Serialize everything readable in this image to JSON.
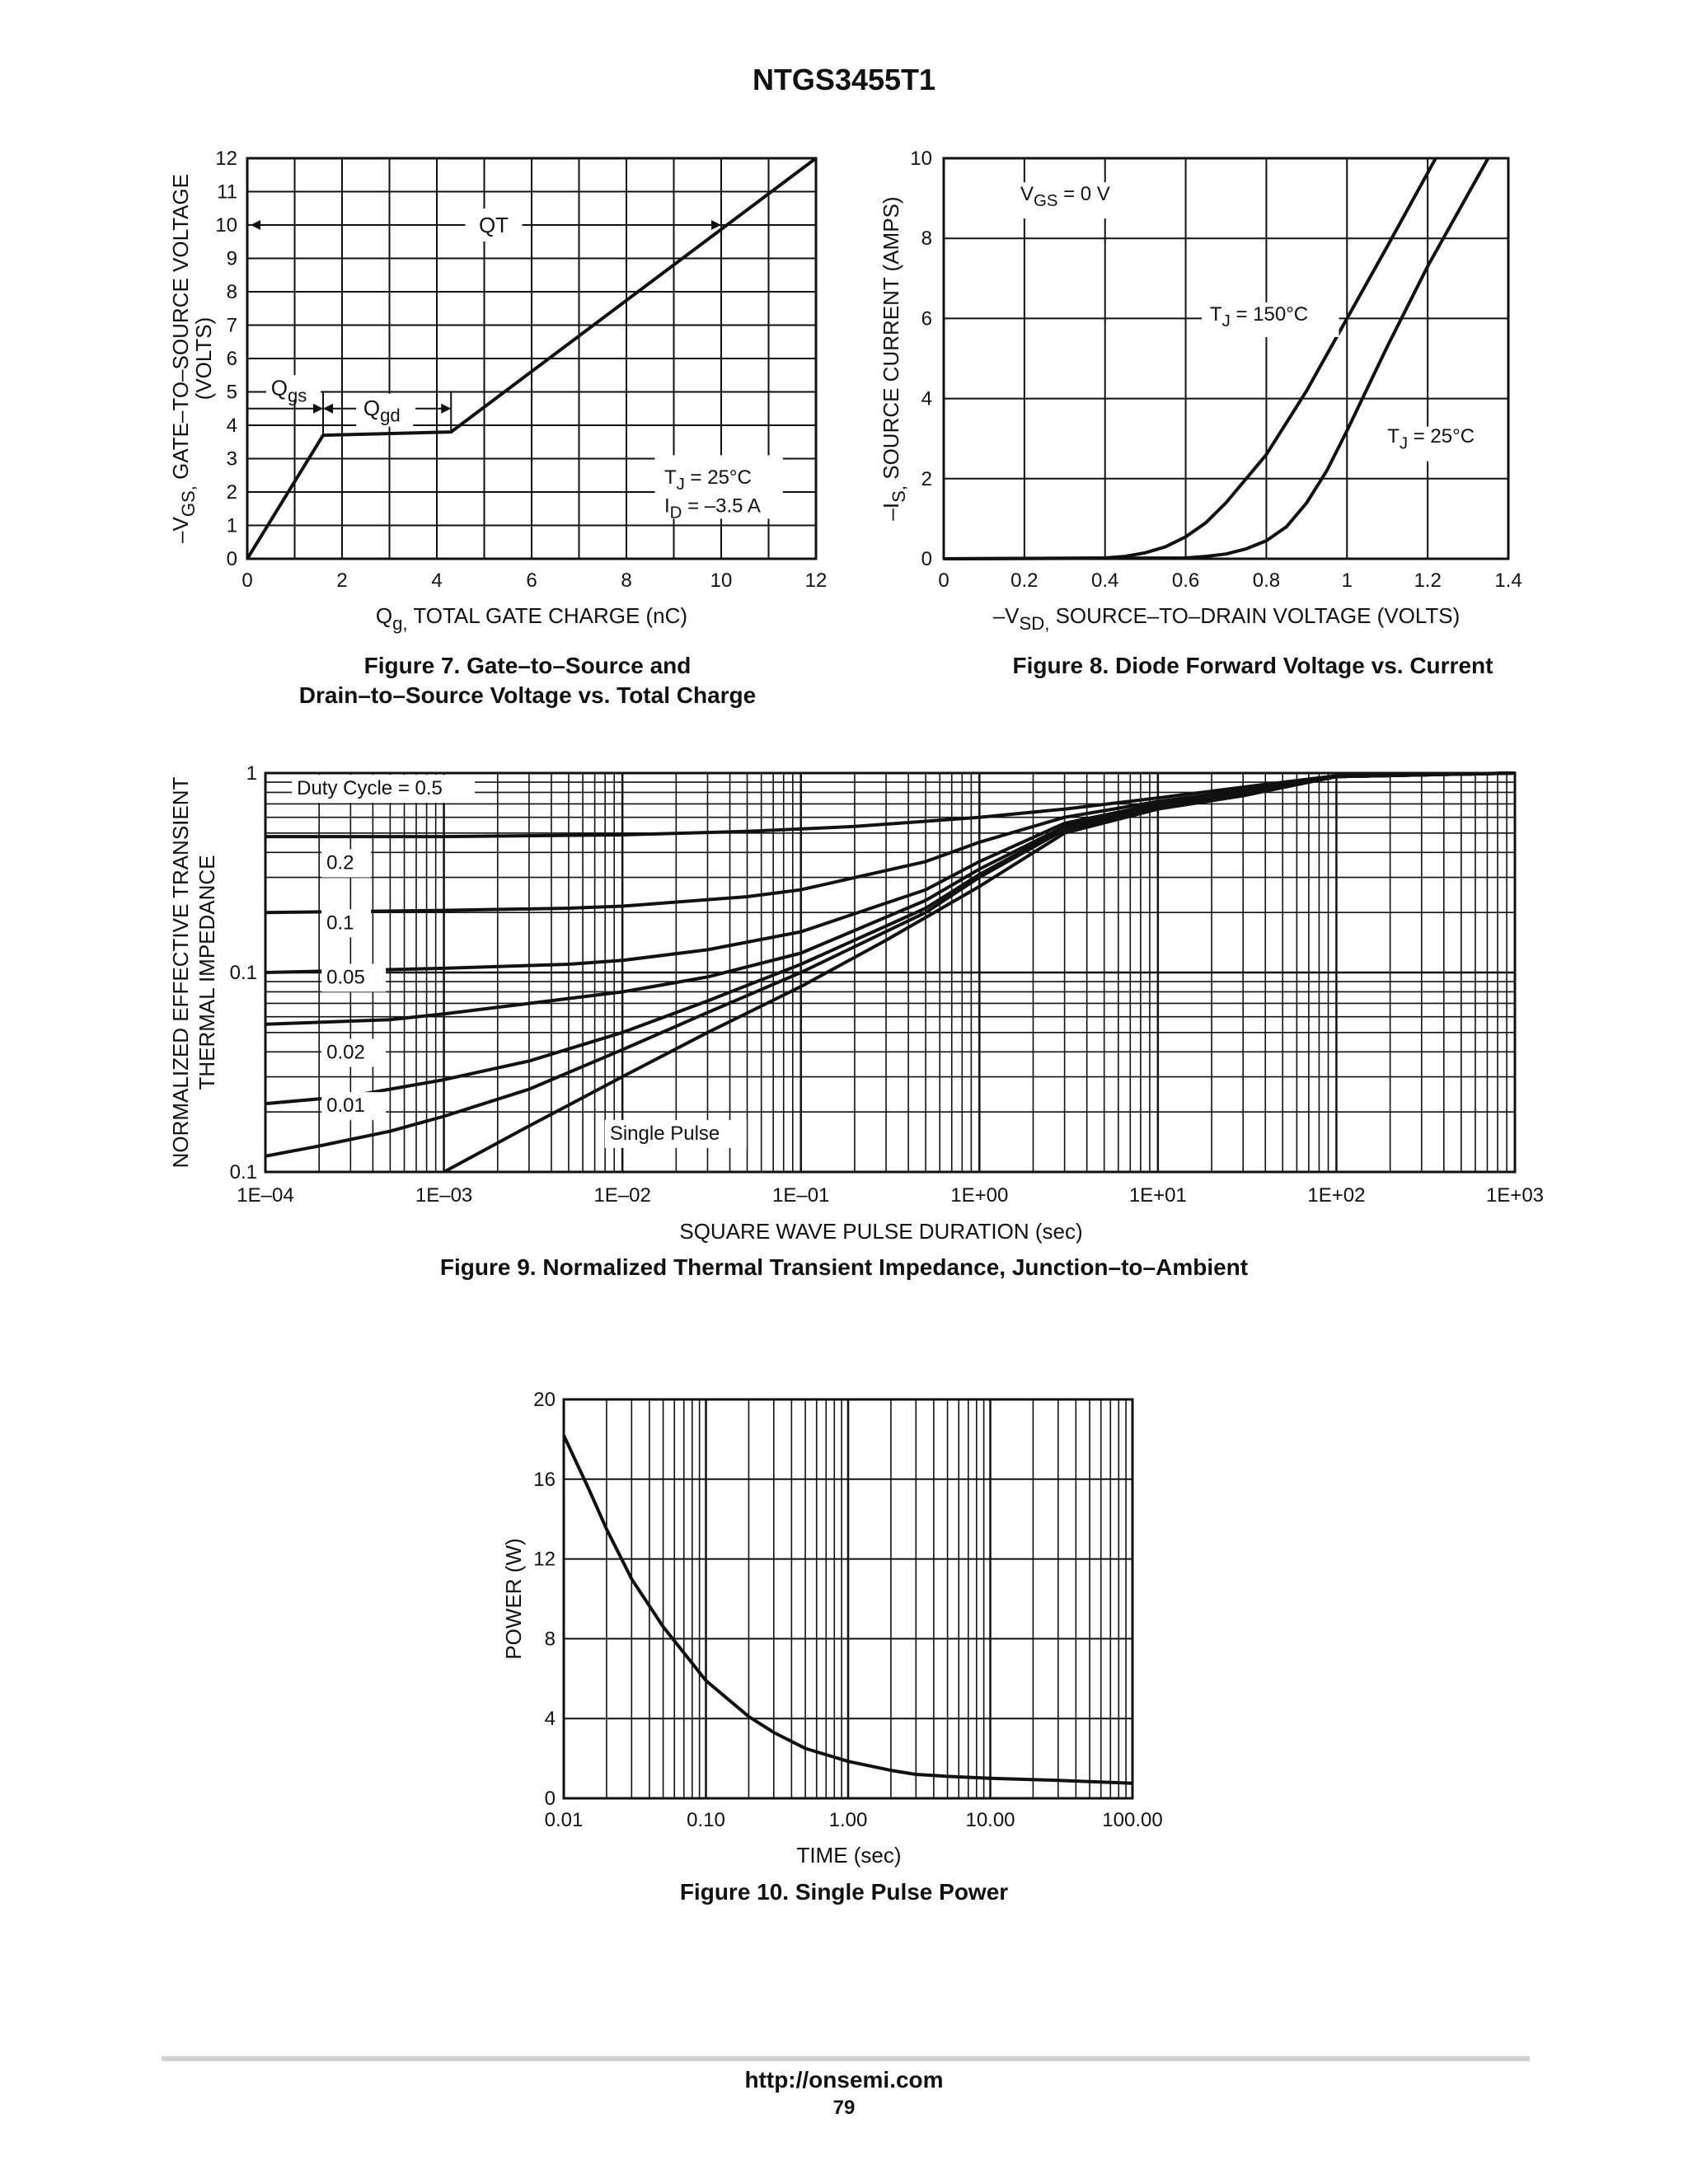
{
  "page": {
    "title": "NTGS3455T1",
    "footer_url": "http://onsemi.com",
    "footer_page": "79"
  },
  "chart_data": [
    {
      "id": "fig7",
      "type": "line",
      "caption_line1": "Figure 7. Gate–to–Source and",
      "caption_line2": "Drain–to–Source Voltage vs. Total Charge",
      "ylabel_line1": "–VGS, GATE–TO–SOURCE VOLTAGE",
      "ylabel_line2": "(VOLTS)",
      "xlabel": "Qg, TOTAL GATE CHARGE (nC)",
      "xlim": [
        0,
        12
      ],
      "ylim": [
        0,
        12
      ],
      "xticks": [
        "0",
        "2",
        "4",
        "6",
        "8",
        "10",
        "12"
      ],
      "yticks": [
        "0",
        "1",
        "2",
        "3",
        "4",
        "5",
        "6",
        "7",
        "8",
        "9",
        "10",
        "11",
        "12"
      ],
      "series": [
        {
          "name": "VGS",
          "x": [
            0,
            1.6,
            4.3,
            12
          ],
          "y": [
            0,
            3.7,
            3.8,
            12
          ]
        }
      ],
      "annotations": {
        "qt": "QT",
        "qgs": "Qgs",
        "qgd": "Qgd",
        "tj": "TJ = 25°C",
        "id": "ID = –3.5 A"
      }
    },
    {
      "id": "fig8",
      "type": "line",
      "caption": "Figure 8. Diode Forward Voltage vs. Current",
      "ylabel": "–IS, SOURCE CURRENT (AMPS)",
      "xlabel": "–VSD, SOURCE–TO–DRAIN VOLTAGE (VOLTS)",
      "xlim": [
        0,
        1.4
      ],
      "ylim": [
        0,
        10
      ],
      "xticks": [
        "0",
        "0.2",
        "0.4",
        "0.6",
        "0.8",
        "1",
        "1.2",
        "1.4"
      ],
      "yticks": [
        "0",
        "2",
        "4",
        "6",
        "8",
        "10"
      ],
      "condition": "VGS = 0 V",
      "series": [
        {
          "name": "TJ = 150°C",
          "x": [
            0,
            0.4,
            0.45,
            0.5,
            0.55,
            0.6,
            0.65,
            0.7,
            0.8,
            0.9,
            1.0,
            1.1,
            1.22
          ],
          "y": [
            0,
            0.02,
            0.06,
            0.15,
            0.3,
            0.55,
            0.9,
            1.4,
            2.6,
            4.2,
            6.0,
            7.8,
            10
          ]
        },
        {
          "name": "TJ = 25°C",
          "x": [
            0,
            0.6,
            0.65,
            0.7,
            0.75,
            0.8,
            0.85,
            0.9,
            0.95,
            1.0,
            1.1,
            1.2,
            1.35
          ],
          "y": [
            0,
            0.02,
            0.06,
            0.12,
            0.25,
            0.45,
            0.8,
            1.4,
            2.2,
            3.2,
            5.3,
            7.3,
            10
          ]
        }
      ],
      "series_labels": [
        "TJ = 150°C",
        "TJ = 25°C"
      ]
    },
    {
      "id": "fig9",
      "type": "line",
      "caption": "Figure 9. Normalized Thermal Transient Impedance, Junction–to–Ambient",
      "ylabel_line1": "NORMALIZED EFFECTIVE TRANSIENT",
      "ylabel_line2": "THERMAL IMPEDANCE",
      "xlabel": "SQUARE WAVE PULSE DURATION (sec)",
      "xscale": "log",
      "xlim": [
        0.0001,
        1000
      ],
      "ylim": [
        0.01,
        1
      ],
      "xticks": [
        "1E–04",
        "1E–03",
        "1E–02",
        "1E–01",
        "1E+00",
        "1E+01",
        "1E+02",
        "1E+03"
      ],
      "yticks": [
        "0.1",
        "0.1",
        "1"
      ],
      "series": [
        {
          "name": "Duty Cycle = 0.5",
          "x": [
            0.0001,
            0.001,
            0.01,
            0.05,
            0.2,
            1,
            3,
            10,
            30,
            100,
            1000
          ],
          "y": [
            0.48,
            0.48,
            0.49,
            0.51,
            0.54,
            0.6,
            0.66,
            0.75,
            0.85,
            0.97,
            1.0
          ]
        },
        {
          "name": "0.2",
          "x": [
            0.0001,
            0.001,
            0.005,
            0.01,
            0.05,
            0.1,
            0.5,
            1,
            3,
            10,
            30,
            100,
            1000
          ],
          "y": [
            0.2,
            0.205,
            0.21,
            0.215,
            0.24,
            0.26,
            0.36,
            0.45,
            0.6,
            0.72,
            0.82,
            0.96,
            1.0
          ]
        },
        {
          "name": "0.1",
          "x": [
            0.0001,
            0.001,
            0.005,
            0.01,
            0.03,
            0.1,
            0.5,
            1,
            3,
            10,
            30,
            100,
            1000
          ],
          "y": [
            0.1,
            0.105,
            0.11,
            0.115,
            0.13,
            0.16,
            0.26,
            0.36,
            0.56,
            0.7,
            0.8,
            0.96,
            1.0
          ]
        },
        {
          "name": "0.05",
          "x": [
            0.0001,
            0.0005,
            0.001,
            0.003,
            0.01,
            0.03,
            0.1,
            0.5,
            1,
            3,
            10,
            30,
            100,
            1000
          ],
          "y": [
            0.055,
            0.058,
            0.062,
            0.07,
            0.08,
            0.095,
            0.125,
            0.23,
            0.33,
            0.54,
            0.69,
            0.8,
            0.96,
            1.0
          ]
        },
        {
          "name": "0.02",
          "x": [
            0.0001,
            0.0003,
            0.001,
            0.003,
            0.01,
            0.03,
            0.1,
            0.5,
            1,
            3,
            10,
            30,
            100,
            1000
          ],
          "y": [
            0.022,
            0.024,
            0.029,
            0.036,
            0.05,
            0.072,
            0.11,
            0.21,
            0.31,
            0.53,
            0.68,
            0.79,
            0.96,
            1.0
          ]
        },
        {
          "name": "0.01",
          "x": [
            0.0001,
            0.0002,
            0.0005,
            0.001,
            0.003,
            0.01,
            0.03,
            0.1,
            0.5,
            1,
            3,
            10,
            30,
            100,
            1000
          ],
          "y": [
            0.012,
            0.0135,
            0.016,
            0.019,
            0.026,
            0.041,
            0.063,
            0.1,
            0.2,
            0.3,
            0.52,
            0.67,
            0.78,
            0.96,
            1.0
          ]
        },
        {
          "name": "Single Pulse",
          "x": [
            0.001,
            0.003,
            0.01,
            0.03,
            0.1,
            0.3,
            1,
            3,
            10,
            30,
            100,
            1000
          ],
          "y": [
            0.01,
            0.017,
            0.03,
            0.05,
            0.085,
            0.145,
            0.27,
            0.5,
            0.66,
            0.77,
            0.96,
            1.0
          ]
        }
      ],
      "series_labels": [
        "Duty Cycle = 0.5",
        "0.2",
        "0.1",
        "0.05",
        "0.02",
        "0.01",
        "Single Pulse"
      ]
    },
    {
      "id": "fig10",
      "type": "line",
      "caption": "Figure 10. Single Pulse Power",
      "ylabel": "POWER (W)",
      "xlabel": "TIME (sec)",
      "xscale": "log",
      "xlim": [
        0.01,
        100
      ],
      "ylim": [
        0,
        20
      ],
      "xticks": [
        "0.01",
        "0.10",
        "1.00",
        "10.00",
        "100.00"
      ],
      "yticks": [
        "0",
        "4",
        "8",
        "12",
        "16",
        "20"
      ],
      "series": [
        {
          "name": "Power",
          "x": [
            0.01,
            0.015,
            0.02,
            0.03,
            0.05,
            0.1,
            0.2,
            0.3,
            0.5,
            1,
            2,
            3,
            5,
            10,
            30,
            100
          ],
          "y": [
            18.2,
            15.5,
            13.5,
            11.0,
            8.6,
            5.9,
            4.1,
            3.3,
            2.5,
            1.85,
            1.4,
            1.2,
            1.1,
            1.0,
            0.9,
            0.75
          ]
        }
      ]
    }
  ]
}
